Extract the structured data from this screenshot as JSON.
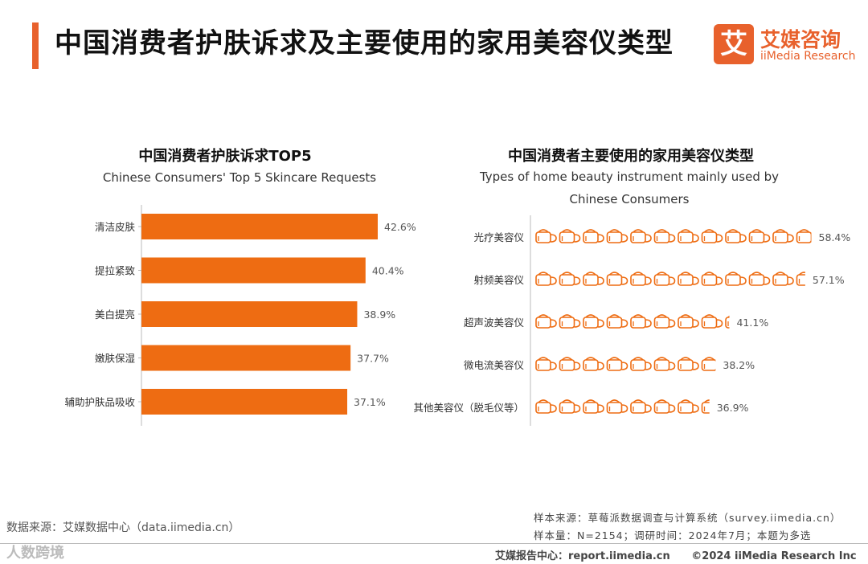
{
  "header": {
    "title": "中国消费者护肤诉求及主要使用的家用美容仪类型",
    "logo_box": "艾",
    "logo_cn": "艾媒咨询",
    "logo_en": "iiMedia Research"
  },
  "left_chart": {
    "title": "中国消费者护肤诉求TOP5",
    "subtitle": "Chinese Consumers' Top 5 Skincare Requests"
  },
  "right_chart": {
    "title": "中国消费者主要使用的家用美容仪类型",
    "subtitle_line1": "Types of home beauty instrument mainly used by",
    "subtitle_line2": "Chinese Consumers"
  },
  "chart_data": [
    {
      "type": "bar",
      "orientation": "horizontal",
      "title": "中国消费者护肤诉求TOP5",
      "subtitle": "Chinese Consumers' Top 5 Skincare Requests",
      "categories": [
        "清洁皮肤",
        "提拉紧致",
        "美白提亮",
        "嫩肤保湿",
        "辅助护肤品吸收"
      ],
      "values": [
        42.6,
        40.4,
        38.9,
        37.7,
        37.1
      ],
      "labels": [
        "42.6%",
        "40.4%",
        "38.9%",
        "37.7%",
        "37.1%"
      ],
      "unit": "%",
      "color": "#ee6c12"
    },
    {
      "type": "bar",
      "style": "pictogram",
      "icon": "cup-icon",
      "title": "中国消费者主要使用的家用美容仪类型",
      "subtitle": "Types of home beauty instrument mainly used by Chinese Consumers",
      "categories": [
        "光疗美容仪",
        "射频美容仪",
        "超声波美容仪",
        "微电流美容仪",
        "其他美容仪（脱毛仪等）"
      ],
      "values": [
        58.4,
        57.1,
        41.1,
        38.2,
        36.9
      ],
      "labels": [
        "58.4%",
        "57.1%",
        "41.1%",
        "38.2%",
        "36.9%"
      ],
      "unit": "%",
      "color": "#ee6c12"
    }
  ],
  "footer": {
    "source_left": "数据来源：艾媒数据中心（data.iimedia.cn）",
    "sample_source": "样本来源：草莓派数据调查与计算系统（survey.iimedia.cn）",
    "sample_size": "样本量：N=2154；调研时间：2024年7月；本题为多选",
    "report_center": "艾媒报告中心：report.iimedia.cn",
    "copyright": "©2024  iiMedia Research  Inc",
    "watermark": "人数跨境"
  }
}
